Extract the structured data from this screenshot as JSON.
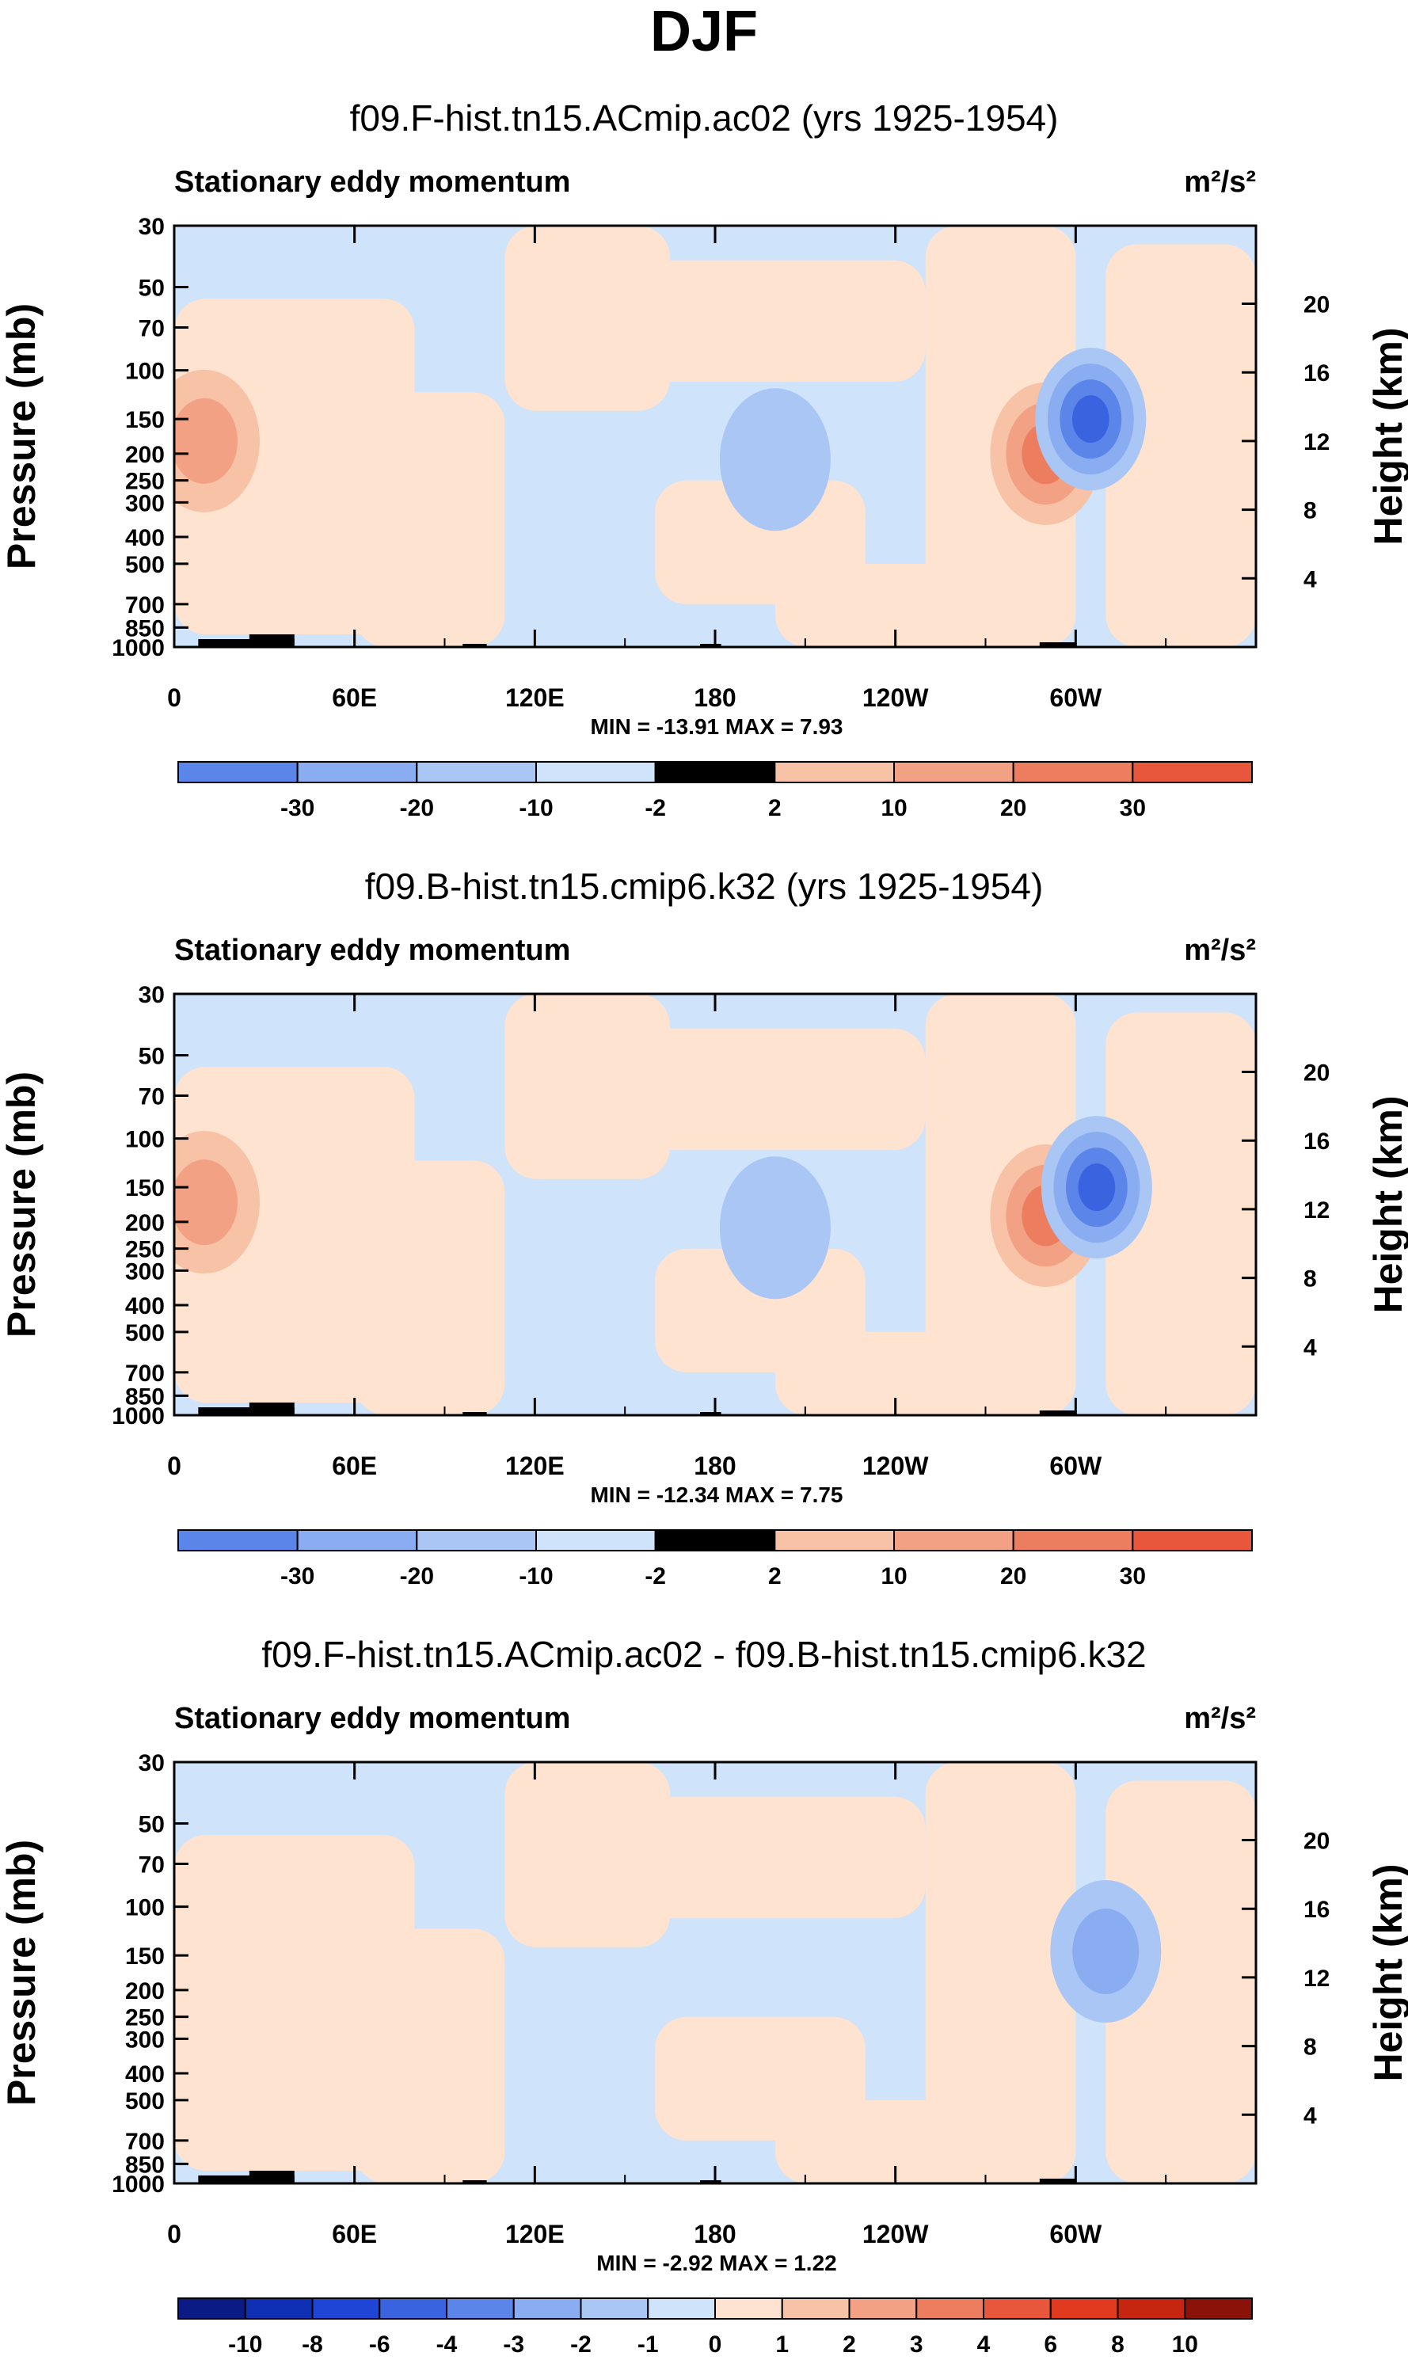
{
  "title": "DJF",
  "chart_data": [
    {
      "type": "heatmap",
      "title": "f09.F-hist.tn15.ACmip.ac02 (yrs 1925-1954)",
      "subtitle": "Stationary eddy momentum",
      "units": "m²/s²",
      "ylabel": "Pressure (mb)",
      "ylabel_right": "Height (km)",
      "x_ticks": [
        "0",
        "60E",
        "120E",
        "180",
        "120W",
        "60W"
      ],
      "y_ticks": [
        "30",
        "50",
        "70",
        "100",
        "150",
        "200",
        "250",
        "300",
        "400",
        "500",
        "700",
        "850",
        "1000"
      ],
      "y_right_ticks": [
        "20",
        "16",
        "12",
        "8",
        "4"
      ],
      "stats": "MIN = -13.91  MAX =   7.93",
      "min": -13.91,
      "max": 7.93,
      "colorbar_labels": [
        "-30",
        "-20",
        "-10",
        "-2",
        "2",
        "10",
        "20",
        "30"
      ],
      "features": [
        {
          "lon": 10,
          "p": 180,
          "sign": "pos",
          "level": 2
        },
        {
          "lon": 290,
          "p": 200,
          "sign": "pos",
          "level": 3
        },
        {
          "lon": 305,
          "p": 150,
          "sign": "neg",
          "level": 4
        },
        {
          "lon": 200,
          "p": 210,
          "sign": "neg",
          "level": 1
        }
      ]
    },
    {
      "type": "heatmap",
      "title": "f09.B-hist.tn15.cmip6.k32 (yrs 1925-1954)",
      "subtitle": "Stationary eddy momentum",
      "units": "m²/s²",
      "ylabel": "Pressure (mb)",
      "ylabel_right": "Height (km)",
      "x_ticks": [
        "0",
        "60E",
        "120E",
        "180",
        "120W",
        "60W"
      ],
      "y_ticks": [
        "30",
        "50",
        "70",
        "100",
        "150",
        "200",
        "250",
        "300",
        "400",
        "500",
        "700",
        "850",
        "1000"
      ],
      "y_right_ticks": [
        "20",
        "16",
        "12",
        "8",
        "4"
      ],
      "stats": "MIN = -12.34  MAX =   7.75",
      "min": -12.34,
      "max": 7.75,
      "colorbar_labels": [
        "-30",
        "-20",
        "-10",
        "-2",
        "2",
        "10",
        "20",
        "30"
      ],
      "features": [
        {
          "lon": 10,
          "p": 170,
          "sign": "pos",
          "level": 2
        },
        {
          "lon": 290,
          "p": 190,
          "sign": "pos",
          "level": 3
        },
        {
          "lon": 307,
          "p": 150,
          "sign": "neg",
          "level": 4
        },
        {
          "lon": 200,
          "p": 210,
          "sign": "neg",
          "level": 1
        }
      ]
    },
    {
      "type": "heatmap",
      "title": "f09.F-hist.tn15.ACmip.ac02 - f09.B-hist.tn15.cmip6.k32",
      "subtitle": "Stationary eddy momentum",
      "units": "m²/s²",
      "ylabel": "Pressure (mb)",
      "ylabel_right": "Height (km)",
      "x_ticks": [
        "0",
        "60E",
        "120E",
        "180",
        "120W",
        "60W"
      ],
      "y_ticks": [
        "30",
        "50",
        "70",
        "100",
        "150",
        "200",
        "250",
        "300",
        "400",
        "500",
        "700",
        "850",
        "1000"
      ],
      "y_right_ticks": [
        "20",
        "16",
        "12",
        "8",
        "4"
      ],
      "stats": "MIN =  -2.92  MAX =   1.22",
      "min": -2.92,
      "max": 1.22,
      "colorbar_labels": [
        "-10",
        "-8",
        "-6",
        "-4",
        "-3",
        "-2",
        "-1",
        "0",
        "1",
        "2",
        "3",
        "4",
        "6",
        "8",
        "10"
      ],
      "features": [
        {
          "lon": 310,
          "p": 145,
          "sign": "neg",
          "level": 2
        }
      ]
    }
  ],
  "palette_neg": [
    "#cfe3fa",
    "#a9c6f5",
    "#8aacf0",
    "#5b85e8",
    "#3a63e0",
    "#1f45d6",
    "#0f2fb5",
    "#0a1b86"
  ],
  "palette_pos": [
    "#fde3d0",
    "#f7c2a6",
    "#f2a184",
    "#ec7d5e",
    "#e8573c",
    "#e13a1f",
    "#c6260f",
    "#8a1208"
  ],
  "land_color": "#000000"
}
